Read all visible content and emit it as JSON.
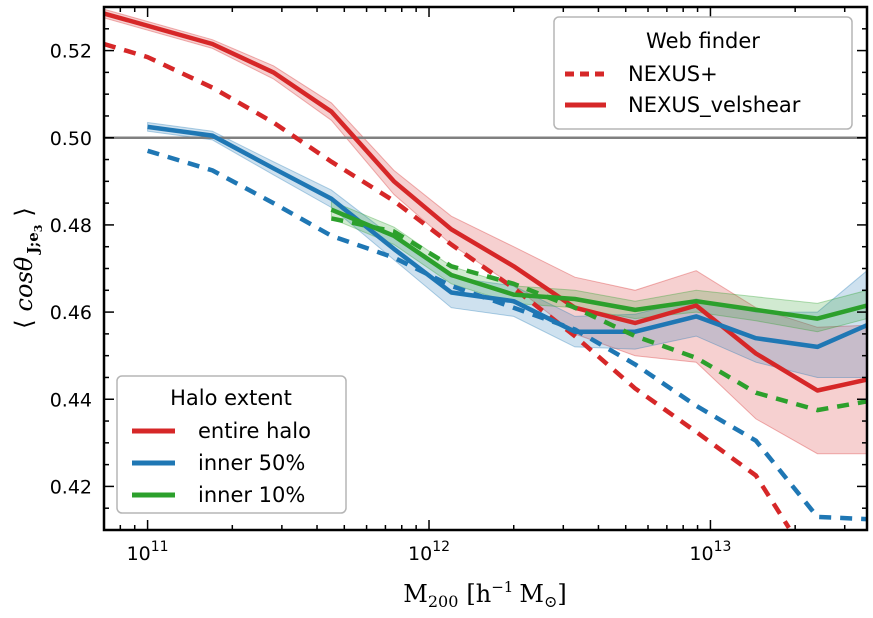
{
  "chart_data": {
    "type": "line",
    "xscale": "log",
    "xlim": [
      70000000000.0,
      36000000000000.0
    ],
    "ylim": [
      0.41,
      0.53
    ],
    "xlabel": "M200 [h^-1 M_sun]",
    "ylabel": "⟨ cosθ J;e3 ⟩",
    "ylabel_parts": {
      "left": "⟨",
      "main": "cosθ",
      "sub": "J;e",
      "subsub": "3",
      "right": "⟩"
    },
    "xlabel_parts": {
      "main": "M",
      "sub": "200",
      "bracket_open": "[h",
      "sup": "−1",
      "unit": "M",
      "sun": "⊙",
      "bracket_close": "]"
    },
    "x_ticks": [
      {
        "value": 100000000000.0,
        "base": "10",
        "exp": "11"
      },
      {
        "value": 1000000000000.0,
        "base": "10",
        "exp": "12"
      },
      {
        "value": 10000000000000.0,
        "base": "10",
        "exp": "13"
      }
    ],
    "y_ticks": [
      {
        "value": 0.42,
        "label": "0.42"
      },
      {
        "value": 0.44,
        "label": "0.44"
      },
      {
        "value": 0.46,
        "label": "0.46"
      },
      {
        "value": 0.48,
        "label": "0.48"
      },
      {
        "value": 0.5,
        "label": "0.50"
      },
      {
        "value": 0.52,
        "label": "0.52"
      }
    ],
    "reference_line": {
      "y": 0.5,
      "color": "#808080"
    },
    "colors": {
      "red": "#d62728",
      "blue": "#1f77b4",
      "green": "#2ca02c"
    },
    "series": [
      {
        "name": "entire halo, NEXUS_velshear",
        "color": "red",
        "dash": "solid",
        "x": [
          70000000000.0,
          170000000000.0,
          280000000000.0,
          450000000000.0,
          750000000000.0,
          1200000000000.0,
          2000000000000.0,
          3300000000000.0,
          5400000000000.0,
          8900000000000.0,
          14500000000000.0,
          24000000000000.0,
          36000000000000.0
        ],
        "y": [
          0.5285,
          0.5215,
          0.515,
          0.506,
          0.49,
          0.479,
          0.4705,
          0.461,
          0.4575,
          0.4615,
          0.4505,
          0.442,
          0.4445
        ],
        "lower": [
          0.5275,
          0.5205,
          0.5135,
          0.504,
          0.487,
          0.4755,
          0.466,
          0.455,
          0.45,
          0.4485,
          0.4355,
          0.4275,
          0.4275
        ],
        "upper": [
          0.5295,
          0.5225,
          0.5165,
          0.508,
          0.4925,
          0.482,
          0.475,
          0.468,
          0.465,
          0.4695,
          0.461,
          0.4565,
          0.457
        ]
      },
      {
        "name": "entire halo, NEXUS+",
        "color": "red",
        "dash": "dashed",
        "x": [
          70000000000.0,
          100000000000.0,
          170000000000.0,
          280000000000.0,
          450000000000.0,
          750000000000.0,
          1200000000000.0,
          2000000000000.0,
          3300000000000.0,
          5400000000000.0,
          8900000000000.0,
          14500000000000.0,
          19000000000000.0
        ],
        "y": [
          0.5215,
          0.5185,
          0.5115,
          0.5035,
          0.4945,
          0.4855,
          0.4755,
          0.4655,
          0.4545,
          0.4425,
          0.4325,
          0.4225,
          0.4105
        ]
      },
      {
        "name": "inner 50%, NEXUS_velshear",
        "color": "blue",
        "dash": "solid",
        "x": [
          100000000000.0,
          170000000000.0,
          280000000000.0,
          450000000000.0,
          750000000000.0,
          1200000000000.0,
          2000000000000.0,
          3300000000000.0,
          5400000000000.0,
          8900000000000.0,
          14500000000000.0,
          24000000000000.0,
          36000000000000.0
        ],
        "y": [
          0.5025,
          0.5005,
          0.493,
          0.486,
          0.4745,
          0.4645,
          0.4625,
          0.4555,
          0.4555,
          0.459,
          0.454,
          0.452,
          0.457
        ],
        "lower": [
          0.5015,
          0.4995,
          0.4915,
          0.484,
          0.472,
          0.461,
          0.459,
          0.452,
          0.4515,
          0.4545,
          0.4485,
          0.445,
          0.445
        ],
        "upper": [
          0.5035,
          0.5015,
          0.4945,
          0.488,
          0.477,
          0.468,
          0.466,
          0.459,
          0.4595,
          0.463,
          0.46,
          0.46,
          0.4695
        ]
      },
      {
        "name": "inner 50%, NEXUS+",
        "color": "blue",
        "dash": "dashed",
        "x": [
          100000000000.0,
          170000000000.0,
          280000000000.0,
          450000000000.0,
          750000000000.0,
          1200000000000.0,
          2000000000000.0,
          3300000000000.0,
          5400000000000.0,
          8900000000000.0,
          14500000000000.0,
          24000000000000.0,
          36000000000000.0
        ],
        "y": [
          0.497,
          0.4925,
          0.485,
          0.4775,
          0.4725,
          0.466,
          0.461,
          0.456,
          0.448,
          0.4385,
          0.4305,
          0.413,
          0.4125
        ]
      },
      {
        "name": "inner 10%, NEXUS_velshear",
        "color": "green",
        "dash": "solid",
        "x": [
          450000000000.0,
          750000000000.0,
          1200000000000.0,
          2000000000000.0,
          3300000000000.0,
          5400000000000.0,
          8900000000000.0,
          14500000000000.0,
          24000000000000.0,
          36000000000000.0
        ],
        "y": [
          0.4835,
          0.4775,
          0.4685,
          0.464,
          0.463,
          0.4605,
          0.4625,
          0.4605,
          0.4585,
          0.4615
        ],
        "lower": [
          0.4815,
          0.4755,
          0.4665,
          0.462,
          0.461,
          0.4585,
          0.46,
          0.458,
          0.4555,
          0.4585
        ],
        "upper": [
          0.4855,
          0.4795,
          0.4705,
          0.466,
          0.465,
          0.4625,
          0.465,
          0.4635,
          0.462,
          0.465
        ]
      },
      {
        "name": "inner 10%, NEXUS+",
        "color": "green",
        "dash": "dashed",
        "x": [
          450000000000.0,
          750000000000.0,
          1200000000000.0,
          2000000000000.0,
          3300000000000.0,
          5400000000000.0,
          8900000000000.0,
          14500000000000.0,
          24000000000000.0,
          36000000000000.0
        ],
        "y": [
          0.4815,
          0.4785,
          0.4705,
          0.4665,
          0.461,
          0.4545,
          0.4495,
          0.4415,
          0.4375,
          0.4395
        ]
      }
    ],
    "legend_web_finder": {
      "title": "Web finder",
      "placement": "top-right",
      "entries": [
        {
          "label": "NEXUS+",
          "dash": "dashed",
          "color": "red"
        },
        {
          "label": "NEXUS_velshear",
          "dash": "solid",
          "color": "red"
        }
      ]
    },
    "legend_halo_extent": {
      "title": "Halo extent",
      "placement": "bottom-left",
      "entries": [
        {
          "label": "entire halo",
          "color": "red"
        },
        {
          "label": "inner 50%",
          "color": "blue"
        },
        {
          "label": "inner 10%",
          "color": "green"
        }
      ]
    }
  }
}
